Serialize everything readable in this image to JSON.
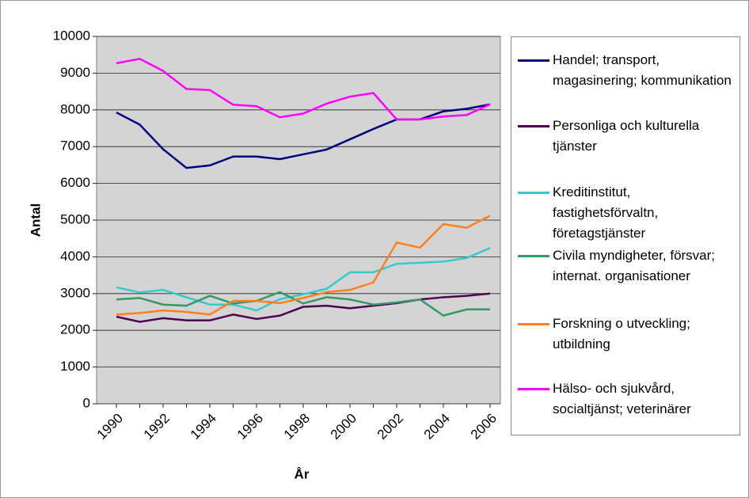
{
  "chart_data": {
    "type": "line",
    "x_label": "År",
    "y_label": "Antal",
    "categories": [
      "1990",
      null,
      "1992",
      null,
      "1994",
      null,
      "1996",
      null,
      "1998",
      null,
      "2000",
      null,
      "2002",
      null,
      "2004",
      null,
      "2006"
    ],
    "ylim": [
      0,
      10000
    ],
    "yticks": [
      0,
      1000,
      2000,
      3000,
      4000,
      5000,
      6000,
      7000,
      8000,
      9000,
      10000
    ],
    "grid": true,
    "legend": "right",
    "series": [
      {
        "name": "Handel; transport, magasinering; kommunikation",
        "color": "#000080",
        "values": [
          7930,
          7600,
          6930,
          6420,
          6490,
          6730,
          6730,
          6660,
          6790,
          6920,
          7200,
          7480,
          7740,
          7740,
          7960,
          8030,
          8150
        ]
      },
      {
        "name": "Personliga och kulturella tjänster",
        "color": "#500050",
        "values": [
          2370,
          2230,
          2330,
          2270,
          2270,
          2430,
          2310,
          2400,
          2640,
          2670,
          2600,
          2670,
          2740,
          2840,
          2900,
          2940,
          3000
        ]
      },
      {
        "name": "Kreditinstitut, fastighetsförvaltn, företagstjänster",
        "color": "#33cccc",
        "values": [
          3170,
          3030,
          3100,
          2900,
          2700,
          2700,
          2540,
          2850,
          2980,
          3130,
          3580,
          3580,
          3810,
          3840,
          3870,
          3970,
          4240
        ]
      },
      {
        "name": "Civila myndigheter, försvar; internat. organisationer",
        "color": "#339966",
        "values": [
          2840,
          2880,
          2700,
          2670,
          2940,
          2730,
          2800,
          3040,
          2730,
          2900,
          2840,
          2700,
          2760,
          2840,
          2400,
          2570,
          2570
        ]
      },
      {
        "name": "Forskning o utveckling; utbildning",
        "color": "#ff7f1a",
        "values": [
          2430,
          2470,
          2540,
          2500,
          2430,
          2800,
          2800,
          2740,
          2880,
          3040,
          3100,
          3300,
          4390,
          4250,
          4890,
          4790,
          5120
        ]
      },
      {
        "name": "Hälso- och sjukvård, socialtjänst; veterinärer",
        "color": "#ff00ff",
        "values": [
          9270,
          9390,
          9060,
          8570,
          8540,
          8140,
          8100,
          7800,
          7900,
          8170,
          8360,
          8460,
          7740,
          7740,
          7820,
          7860,
          8150
        ]
      }
    ]
  }
}
